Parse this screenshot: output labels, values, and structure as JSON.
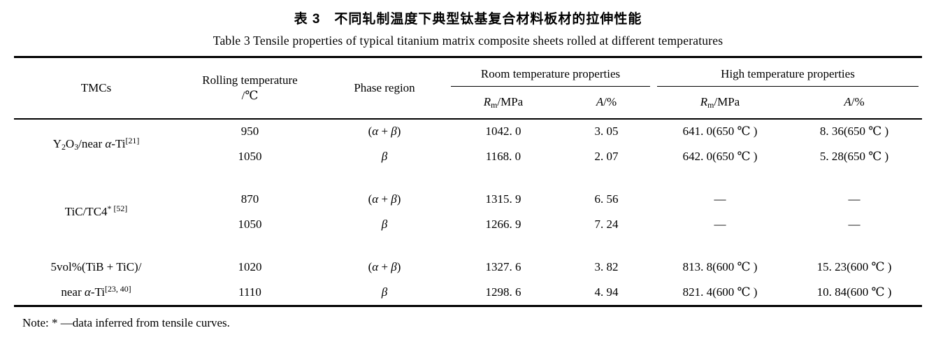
{
  "titles": {
    "zh": "表 3　不同轧制温度下典型钛基复合材料板材的拉伸性能",
    "en": "Table 3  Tensile properties of typical titanium matrix composite sheets rolled at different temperatures"
  },
  "table": {
    "head": {
      "tmcs": "TMCs",
      "rolling_line1": "Rolling temperature",
      "rolling_line2": "/℃",
      "phase": "Phase region",
      "room_group": "Room temperature properties",
      "high_group": "High temperature properties",
      "rm_parts": [
        {
          "t": "R",
          "s": "i"
        },
        {
          "t": "m",
          "s": "sub"
        },
        {
          "t": "/MPa",
          "s": "n"
        }
      ],
      "a_parts": [
        {
          "t": "A",
          "s": "i"
        },
        {
          "t": "/%",
          "s": "n"
        }
      ]
    },
    "groups": [
      {
        "label_lines": [
          [
            {
              "t": "Y",
              "s": "n"
            },
            {
              "t": "2",
              "s": "sub"
            },
            {
              "t": "O",
              "s": "n"
            },
            {
              "t": "3",
              "s": "sub"
            },
            {
              "t": "/near ",
              "s": "n"
            },
            {
              "t": "α",
              "s": "i"
            },
            {
              "t": "-Ti",
              "s": "n"
            },
            {
              "t": "[21]",
              "s": "sup"
            }
          ]
        ],
        "rows": [
          {
            "temp": "950",
            "phase": [
              {
                "t": "(",
                "s": "n"
              },
              {
                "t": "α",
                "s": "i"
              },
              {
                "t": " + ",
                "s": "n"
              },
              {
                "t": "β",
                "s": "i"
              },
              {
                "t": ")",
                "s": "n"
              }
            ],
            "rm_room": "1042. 0",
            "a_room": "3. 05",
            "rm_high": "641. 0(650 ℃ )",
            "a_high": "8. 36(650 ℃ )"
          },
          {
            "temp": "1050",
            "phase": [
              {
                "t": "β",
                "s": "i"
              }
            ],
            "rm_room": "1168. 0",
            "a_room": "2. 07",
            "rm_high": "642. 0(650 ℃ )",
            "a_high": "5. 28(650 ℃ )"
          }
        ]
      },
      {
        "label_lines": [
          [
            {
              "t": "TiC/TC4",
              "s": "n"
            },
            {
              "t": "* [52]",
              "s": "sup"
            }
          ]
        ],
        "rows": [
          {
            "temp": "870",
            "phase": [
              {
                "t": "(",
                "s": "n"
              },
              {
                "t": "α",
                "s": "i"
              },
              {
                "t": " + ",
                "s": "n"
              },
              {
                "t": "β",
                "s": "i"
              },
              {
                "t": ")",
                "s": "n"
              }
            ],
            "rm_room": "1315. 9",
            "a_room": "6. 56",
            "rm_high": "—",
            "a_high": "—"
          },
          {
            "temp": "1050",
            "phase": [
              {
                "t": "β",
                "s": "i"
              }
            ],
            "rm_room": "1266. 9",
            "a_room": "7. 24",
            "rm_high": "—",
            "a_high": "—"
          }
        ]
      },
      {
        "label_lines": [
          [
            {
              "t": "5vol%(TiB + TiC)/",
              "s": "n"
            }
          ],
          [
            {
              "t": "near ",
              "s": "n"
            },
            {
              "t": "α",
              "s": "i"
            },
            {
              "t": "-Ti",
              "s": "n"
            },
            {
              "t": "[23, 40]",
              "s": "sup"
            }
          ]
        ],
        "rows": [
          {
            "temp": "1020",
            "phase": [
              {
                "t": "(",
                "s": "n"
              },
              {
                "t": "α",
                "s": "i"
              },
              {
                "t": " + ",
                "s": "n"
              },
              {
                "t": "β",
                "s": "i"
              },
              {
                "t": ")",
                "s": "n"
              }
            ],
            "rm_room": "1327. 6",
            "a_room": "3. 82",
            "rm_high": "813. 8(600 ℃ )",
            "a_high": "15. 23(600 ℃ )"
          },
          {
            "temp": "1110",
            "phase": [
              {
                "t": "β",
                "s": "i"
              }
            ],
            "rm_room": "1298. 6",
            "a_room": "4. 94",
            "rm_high": "821. 4(600 ℃ )",
            "a_high": "10. 84(600 ℃ )"
          }
        ]
      }
    ],
    "note": "Note: * —data inferred from tensile curves."
  }
}
